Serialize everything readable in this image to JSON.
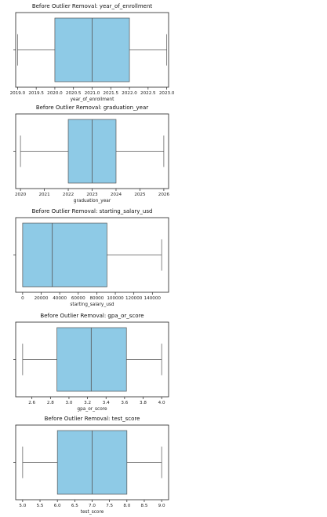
{
  "chart_data": [
    {
      "type": "box",
      "title": "Before Outlier Removal: year_of_enrollment",
      "xlabel": "year_of_enrollment",
      "xlim": [
        2018.95,
        2023.05
      ],
      "xticks": [
        2019.0,
        2019.5,
        2020.0,
        2020.5,
        2021.0,
        2021.5,
        2022.0,
        2022.5,
        2023.0
      ],
      "xtick_labels": [
        "2019.0",
        "2019.5",
        "2020.0",
        "2020.5",
        "2021.0",
        "2021.5",
        "2022.0",
        "2022.5",
        "2023.0"
      ],
      "stats": {
        "min": 2019,
        "q1": 2020,
        "median": 2021,
        "q3": 2022,
        "max": 2023
      },
      "color": "#8ecae6"
    },
    {
      "type": "box",
      "title": "Before Outlier Removal: graduation_year",
      "xlabel": "graduation_year",
      "xlim": [
        2019.8,
        2026.2
      ],
      "xticks": [
        2020,
        2021,
        2022,
        2023,
        2024,
        2025,
        2026
      ],
      "xtick_labels": [
        "2020",
        "2021",
        "2022",
        "2023",
        "2024",
        "2025",
        "2026"
      ],
      "stats": {
        "min": 2020,
        "q1": 2022,
        "median": 2023,
        "q3": 2024,
        "max": 2026
      },
      "color": "#8ecae6"
    },
    {
      "type": "box",
      "title": "Before Outlier Removal: starting_salary_usd",
      "xlabel": "starting_salary_usd",
      "xlim": [
        -7500,
        157500
      ],
      "xticks": [
        0,
        20000,
        40000,
        60000,
        80000,
        100000,
        120000,
        140000
      ],
      "xtick_labels": [
        "0",
        "20000",
        "40000",
        "60000",
        "80000",
        "100000",
        "120000",
        "140000"
      ],
      "stats": {
        "min": 0,
        "q1": 0,
        "median": 32000,
        "q3": 91000,
        "max": 150000
      },
      "color": "#8ecae6"
    },
    {
      "type": "box",
      "title": "Before Outlier Removal: gpa_or_score",
      "xlabel": "gpa_or_score",
      "xlim": [
        2.425,
        4.075
      ],
      "xticks": [
        2.6,
        2.8,
        3.0,
        3.2,
        3.4,
        3.6,
        3.8,
        4.0
      ],
      "xtick_labels": [
        "2.6",
        "2.8",
        "3.0",
        "3.2",
        "3.4",
        "3.6",
        "3.8",
        "4.0"
      ],
      "stats": {
        "min": 2.5,
        "q1": 2.87,
        "median": 3.24,
        "q3": 3.62,
        "max": 4.0
      },
      "color": "#8ecae6"
    },
    {
      "type": "box",
      "title": "Before Outlier Removal: test_score",
      "xlabel": "test_score",
      "xlim": [
        4.8,
        9.2
      ],
      "xticks": [
        5.0,
        5.5,
        6.0,
        6.5,
        7.0,
        7.5,
        8.0,
        8.5,
        9.0
      ],
      "xtick_labels": [
        "5.0",
        "5.5",
        "6.0",
        "6.5",
        "7.0",
        "7.5",
        "8.0",
        "8.5",
        "9.0"
      ],
      "stats": {
        "min": 5,
        "q1": 6,
        "median": 7,
        "q3": 8,
        "max": 9
      },
      "color": "#8ecae6"
    }
  ]
}
